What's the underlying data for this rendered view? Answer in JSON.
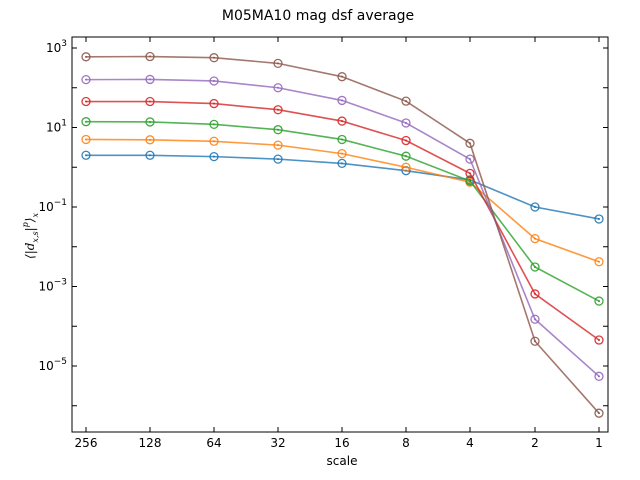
{
  "chart_data": {
    "type": "line",
    "title": "M05MA10 mag dsf average",
    "xlabel": "scale",
    "ylabel": "⟨|d_{x,s}|^p⟩_x",
    "x": [
      256,
      128,
      64,
      32,
      16,
      8,
      4,
      2,
      1
    ],
    "x_scale": "log2-reversed",
    "y_scale": "log",
    "ylim": [
      3e-07,
      2000
    ],
    "xtick_labels": [
      "256",
      "128",
      "64",
      "32",
      "16",
      "8",
      "4",
      "2",
      "1"
    ],
    "ytick_labels": [
      {
        "value": 1000,
        "text": "10^3"
      },
      {
        "value": 10,
        "text": "10^1"
      },
      {
        "value": 0.1,
        "text": "10^-1"
      },
      {
        "value": 0.001,
        "text": "10^-3"
      },
      {
        "value": 1e-05,
        "text": "10^-5"
      }
    ],
    "grid": false,
    "legend": false,
    "marker": "open-circle",
    "series": [
      {
        "color": "#1f77b4",
        "values": [
          2.0,
          2.0,
          1.85,
          1.6,
          1.25,
          0.82,
          0.48,
          0.1,
          0.05
        ]
      },
      {
        "color": "#ff7f0e",
        "values": [
          5.0,
          4.9,
          4.5,
          3.6,
          2.2,
          1.0,
          0.42,
          0.016,
          0.0042
        ]
      },
      {
        "color": "#2ca02c",
        "values": [
          14,
          13.8,
          12,
          8.8,
          5.0,
          1.9,
          0.45,
          0.0031,
          0.00043
        ]
      },
      {
        "color": "#d62728",
        "values": [
          45,
          45,
          40,
          28,
          14.5,
          4.7,
          0.7,
          0.00065,
          4.5e-05
        ]
      },
      {
        "color": "#9467bd",
        "values": [
          160,
          162,
          148,
          100,
          48,
          13,
          1.6,
          0.00015,
          5.5e-06
        ]
      },
      {
        "color": "#8c564b",
        "values": [
          600,
          610,
          570,
          410,
          190,
          46,
          4.0,
          4.2e-05,
          6.5e-07
        ]
      }
    ]
  }
}
